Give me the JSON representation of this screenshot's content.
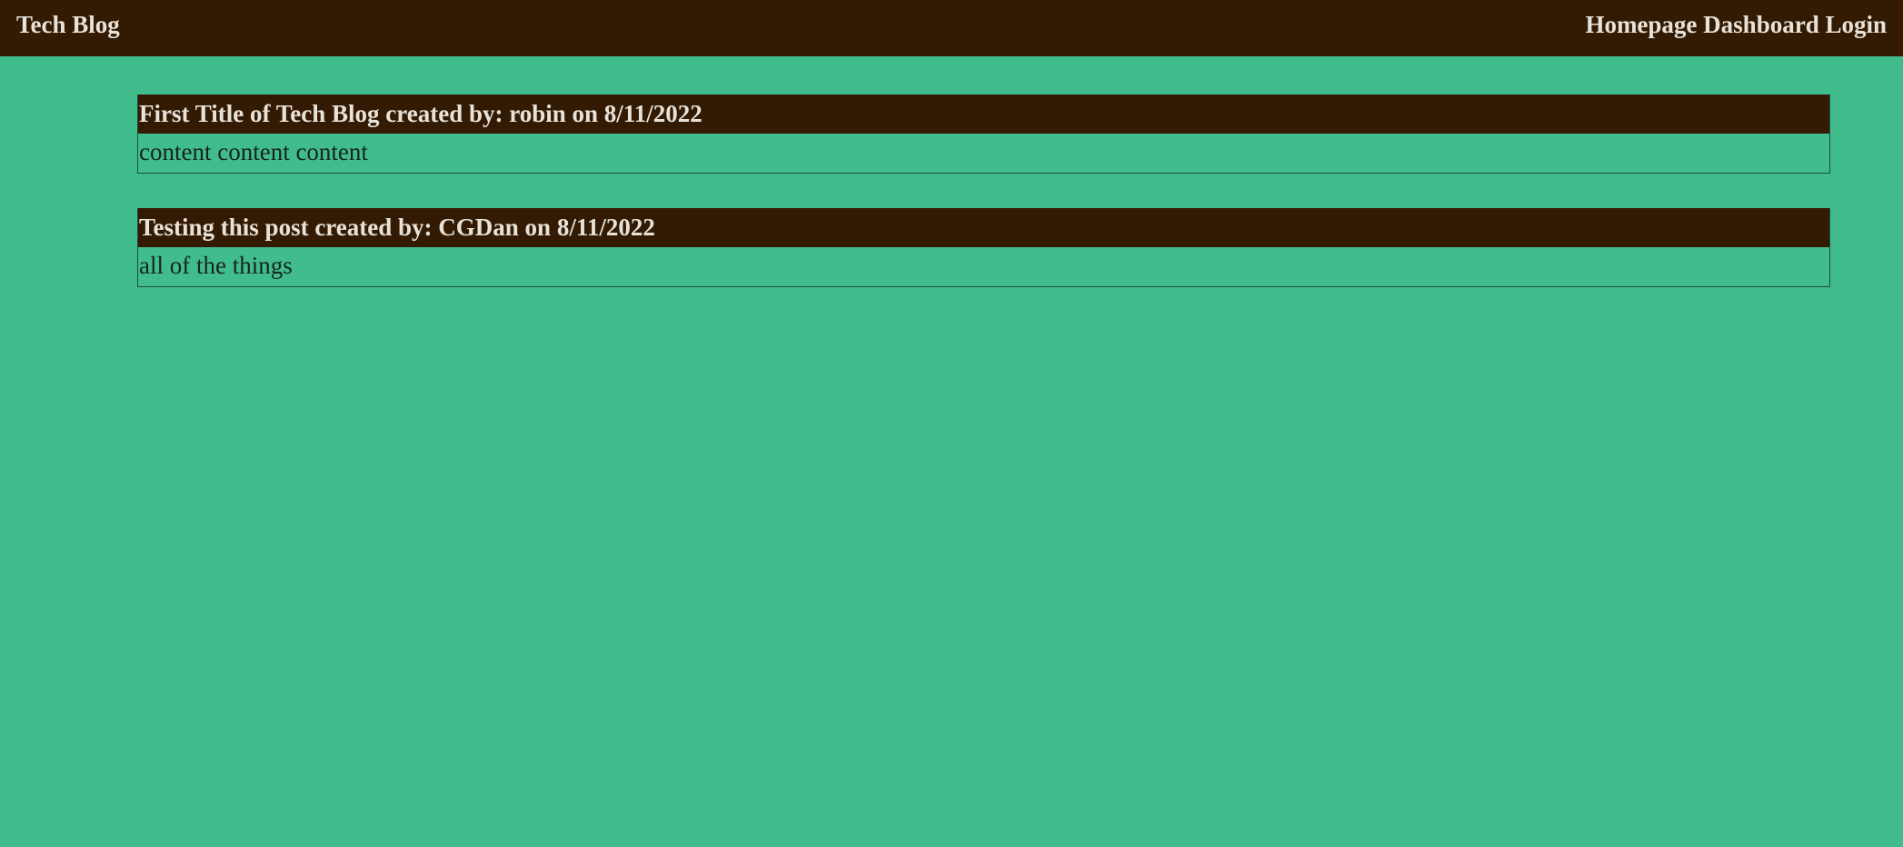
{
  "header": {
    "brand": "Tech Blog",
    "nav": [
      {
        "label": "Homepage"
      },
      {
        "label": "Dashboard"
      },
      {
        "label": "Login"
      }
    ]
  },
  "posts": [
    {
      "title": "First Title of Tech Blog",
      "by_label": "created by:",
      "author": "robin",
      "on_label": "on",
      "date": "8/11/2022",
      "content": "content content content"
    },
    {
      "title": "Testing this post",
      "by_label": "created by:",
      "author": "CGDan",
      "on_label": "on",
      "date": "8/11/2022",
      "content": "all of the things"
    }
  ],
  "colors": {
    "header_bg": "#331b03",
    "page_bg": "#41bd8d",
    "header_text": "#e8e2d8",
    "body_text": "#17241d",
    "post_border": "#1e4d38"
  }
}
